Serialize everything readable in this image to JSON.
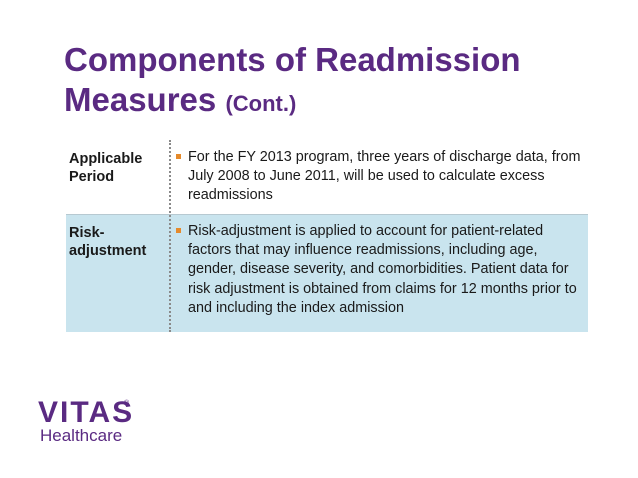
{
  "slide": {
    "title_line1": "Components of Readmission",
    "title_line2_main": "Measures",
    "title_line2_small": "(Cont.)"
  },
  "table": {
    "rows": [
      {
        "label_line1": "Applicable",
        "label_line2": "Period",
        "text": "For the FY 2013 program, three years of discharge data, from July 2008 to June 2011, will be used to calculate excess readmissions"
      },
      {
        "label_line1": "Risk-",
        "label_line2": "adjustment",
        "text": "Risk-adjustment is applied to account for patient-related factors that may influence readmissions, including age, gender, disease severity, and comorbidities.  Patient data for risk adjustment is obtained from claims for 12 months prior to and including the index admission"
      }
    ],
    "colors": {
      "row2_background": "#c9e4ee",
      "bullet": "#e58a2b"
    }
  },
  "logo": {
    "brand": "VITAS",
    "registered": "®",
    "sub": "Healthcare",
    "color": "#5a2a82"
  }
}
